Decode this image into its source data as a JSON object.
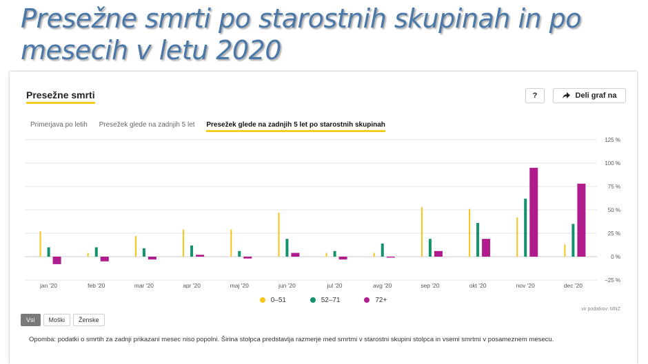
{
  "slide_title": "Presežne smrti po starostnih skupinah in po mesecih v letu 2020",
  "card": {
    "title": "Presežne smrti",
    "help_label": "?",
    "share_label": "Deli graf na"
  },
  "tabs": [
    {
      "label": "Primerjava po letih",
      "active": false
    },
    {
      "label": "Presežek glede na zadnjih 5 let",
      "active": false
    },
    {
      "label": "Presežek glede na zadnjih 5 let po starostnih skupinah",
      "active": true
    }
  ],
  "chart_data": {
    "type": "bar",
    "categories": [
      "jan '20",
      "feb '20",
      "mar '20",
      "apr '20",
      "maj '20",
      "jun '20",
      "jul '20",
      "avg '20",
      "sep '20",
      "okt '20",
      "nov '20",
      "dec '20"
    ],
    "series": [
      {
        "name": "0–51",
        "color": "#f5c518",
        "values": [
          27,
          4,
          22,
          29,
          29,
          47,
          4,
          4,
          53,
          51,
          42,
          13
        ]
      },
      {
        "name": "52–71",
        "color": "#13906c",
        "values": [
          10,
          10,
          9,
          12,
          6,
          19,
          6,
          14,
          19,
          36,
          62,
          35
        ]
      },
      {
        "name": "72+",
        "color": "#b01c8c",
        "values": [
          -8,
          -5,
          -3,
          2,
          -2,
          4,
          -3,
          -1,
          6,
          19,
          95,
          78
        ]
      }
    ],
    "y_ticks": [
      "125 %",
      "100 %",
      "75 %",
      "50 %",
      "25 %",
      "0 %",
      "−25 %"
    ],
    "y_tick_values": [
      125,
      100,
      75,
      50,
      25,
      0,
      -25
    ],
    "ylim": [
      -25,
      125
    ],
    "legend_position": "bottom",
    "grid": true
  },
  "source": "vir podatkov: MNZ",
  "gender_buttons": [
    {
      "label": "Vsi",
      "active": true
    },
    {
      "label": "Moški",
      "active": false
    },
    {
      "label": "Ženske",
      "active": false
    }
  ],
  "note": "Opomba: podatki o smrtih za zadnji prikazani mesec niso popolni. Širina stolpca predstavlja razmerje med smrtmi v starostni skupini stolpca in vsemi smrtmi v posameznem mesecu."
}
